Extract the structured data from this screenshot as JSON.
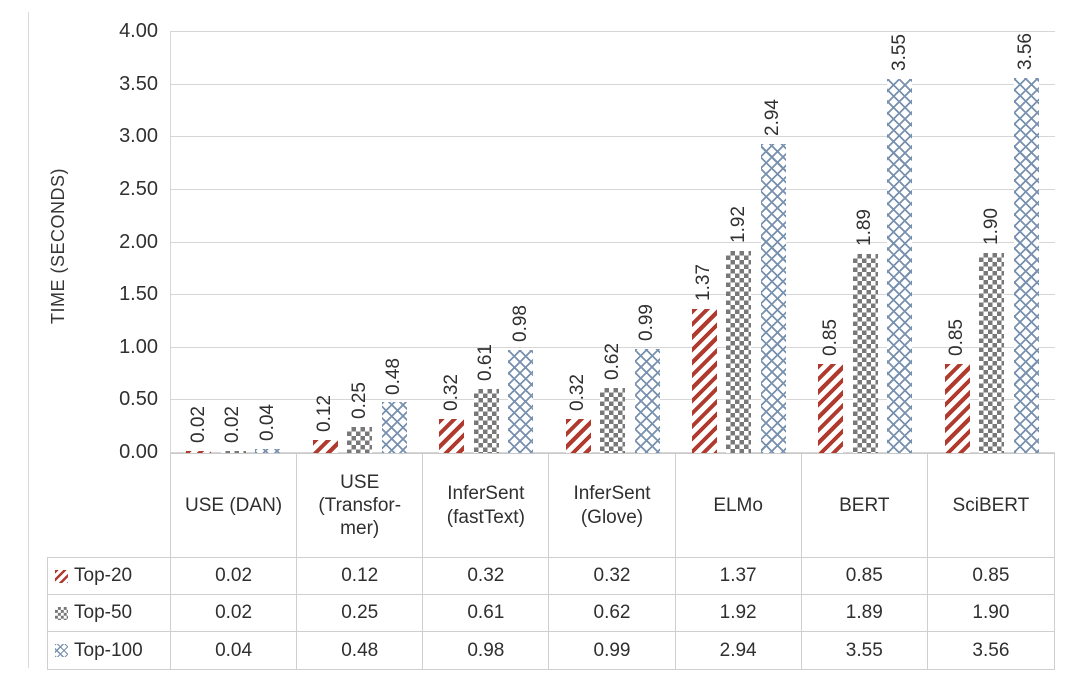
{
  "chart_data": {
    "type": "bar",
    "title": "",
    "xlabel": "",
    "ylabel": "TIME (SECONDS)",
    "ylim": [
      0,
      4
    ],
    "ytick_step": 0.5,
    "ytick_labels": [
      "0.00",
      "0.50",
      "1.00",
      "1.50",
      "2.00",
      "2.50",
      "3.00",
      "3.50",
      "4.00"
    ],
    "grid": "horizontal",
    "legend_position": "data-table-below-with-keys",
    "value_label_rotation": "vertical",
    "value_label_decimals": 2,
    "categories": [
      "USE (DAN)",
      "USE\n(Transfor-\nmer)",
      "InferSent\n(fastText)",
      "InferSent\n(Glove)",
      "ELMo",
      "BERT",
      "SciBERT"
    ],
    "series": [
      {
        "name": "Top-20",
        "pattern": "diagonal-stripes",
        "color": "#b13a2e",
        "values": [
          0.02,
          0.12,
          0.32,
          0.32,
          1.37,
          0.85,
          0.85
        ]
      },
      {
        "name": "Top-50",
        "pattern": "checkerboard",
        "color": "#787878",
        "values": [
          0.02,
          0.25,
          0.61,
          0.62,
          1.92,
          1.89,
          1.9
        ]
      },
      {
        "name": "Top-100",
        "pattern": "diagonal-crosshatch",
        "color": "#7891af",
        "values": [
          0.04,
          0.48,
          0.98,
          0.99,
          2.94,
          3.55,
          3.56
        ]
      }
    ],
    "colors": {
      "gridline": "#d6d6d6",
      "table_border": "#cfcfcf",
      "text": "#2f2f2f",
      "background": "#ffffff"
    }
  }
}
